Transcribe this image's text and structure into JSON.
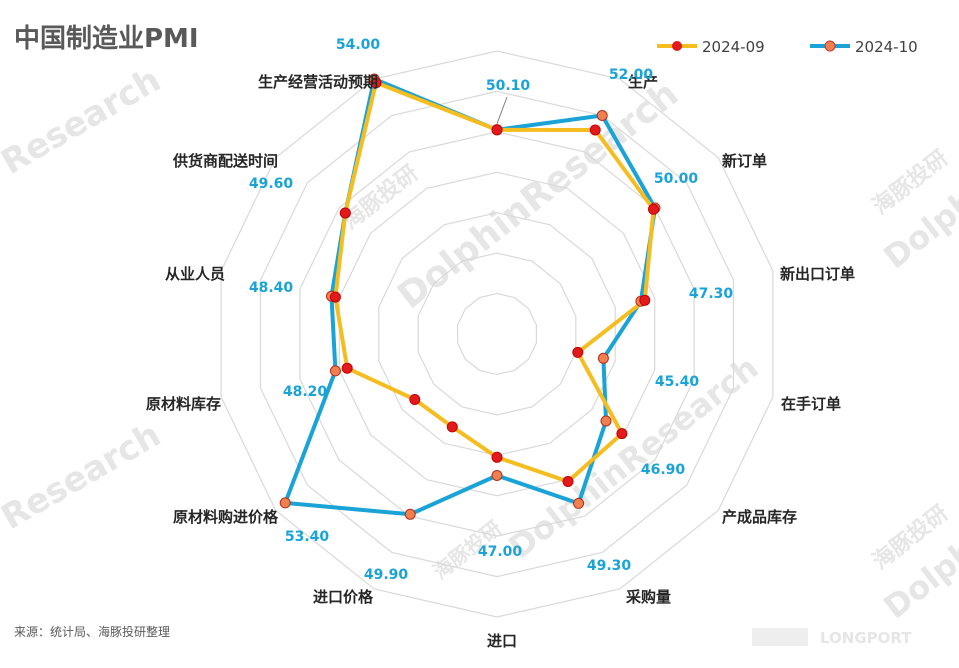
{
  "title": "中国制造业PMI",
  "source": "来源：统计局、海豚投研整理",
  "watermarks": [
    "DolphinResearch",
    "海豚投研",
    "Dolphin",
    "Research",
    "LONGPORT"
  ],
  "colors": {
    "sep": "#f5bd1f",
    "oct": "#1aa3d6",
    "marker": "#e31a1c",
    "marker_oct": "#f08050",
    "value_label": "#1aa3d6"
  },
  "chart_data": {
    "type": "radar",
    "title": "中国制造业PMI",
    "categories": [
      "生产",
      "新订单",
      "新出口订单",
      "在手订单",
      "产成品库存",
      "采购量",
      "进口",
      "进口价格",
      "原材料购进价格",
      "原材料库存",
      "从业人员",
      "供货商配送时间",
      "生产经营活动预期"
    ],
    "series": [
      {
        "name": "2024-09",
        "values": [
          51.2,
          49.9,
          47.5,
          44.1,
          47.9,
          48.1,
          46.1,
          45.1,
          45.2,
          47.6,
          48.2,
          49.6,
          53.8
        ]
      },
      {
        "name": "2024-10",
        "values": [
          52.0,
          50.0,
          47.3,
          45.4,
          46.9,
          49.3,
          47.0,
          49.9,
          53.4,
          48.2,
          48.4,
          49.6,
          54.0
        ]
      }
    ],
    "value_labels": [
      "52.00",
      "50.00",
      "47.30",
      "45.40",
      "46.90",
      "49.30",
      "47.00",
      "49.90",
      "53.40",
      "48.20",
      "48.40",
      "49.60",
      "54.00"
    ],
    "top_value_label": "50.10",
    "top_values": {
      "2024-09": 50.1,
      "2024-10": 50.1
    },
    "r_range": [
      40,
      54
    ],
    "rings": 7,
    "legend_position": "top-right",
    "legend": [
      "2024-09",
      "2024-10"
    ]
  }
}
